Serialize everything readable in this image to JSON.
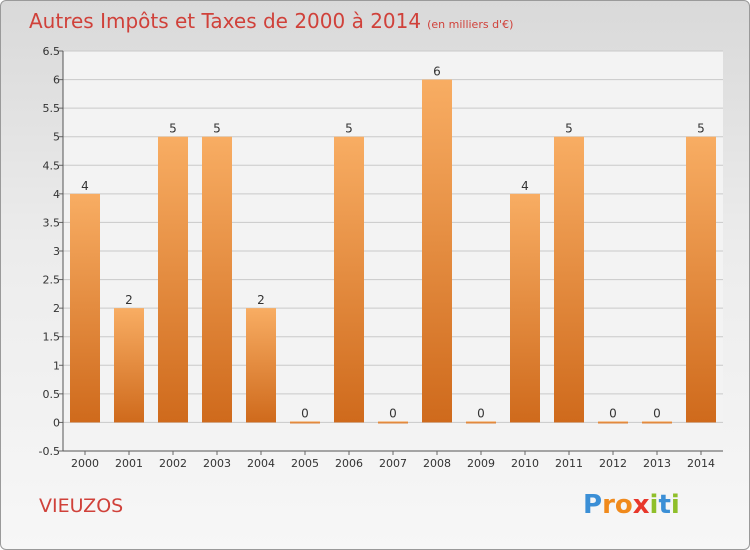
{
  "header": {
    "title": "Autres Impôts et Taxes de 2000 à 2014",
    "subtitle": "(en milliers d'€)"
  },
  "footer": {
    "commune": "VIEUZOS",
    "logo_text": "Proxiti"
  },
  "colors": {
    "title": "#d0413a",
    "bar_light": "#f8ad63",
    "bar_dark": "#cf6a1c"
  },
  "chart_data": {
    "type": "bar",
    "title": "Autres Impôts et Taxes de 2000 à 2014",
    "subtitle": "(en milliers d'€)",
    "categories": [
      "2000",
      "2001",
      "2002",
      "2003",
      "2004",
      "2005",
      "2006",
      "2007",
      "2008",
      "2009",
      "2010",
      "2011",
      "2012",
      "2013",
      "2014"
    ],
    "values": [
      4,
      2,
      5,
      5,
      2,
      0,
      5,
      0,
      6,
      0,
      4,
      5,
      0,
      0,
      5
    ],
    "data_labels": [
      "4",
      "2",
      "5",
      "5",
      "2",
      "0",
      "5",
      "0",
      "6",
      "0",
      "4",
      "5",
      "0",
      "0",
      "5"
    ],
    "ylim": [
      -0.5,
      6.5
    ],
    "yticks": [
      "-0.5",
      "0",
      "0.5",
      "1",
      "1.5",
      "2",
      "2.5",
      "3",
      "3.5",
      "4",
      "4.5",
      "5",
      "5.5",
      "6",
      "6.5"
    ],
    "grid": "horizontal",
    "xlabel": "",
    "ylabel": ""
  }
}
